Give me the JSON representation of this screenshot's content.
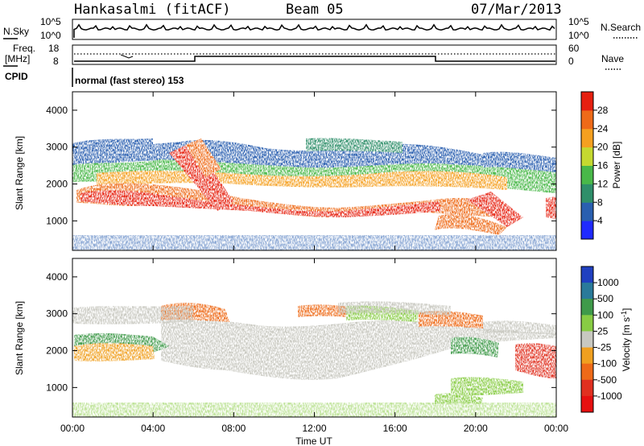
{
  "header": {
    "station": "Hankasalmi (fitACF)",
    "beam": "Beam 05",
    "date": "07/Mar/2013"
  },
  "status_panels": {
    "nsky_label": "N.Sky",
    "nsearch_label": "N.Search",
    "freq_label_line1": "Freq.",
    "freq_label_line2": "[MHz]",
    "nave_label": "Nave",
    "cpid_label": "CPID",
    "cpid_text": "normal (fast stereo) 153",
    "noise_left_ticks": [
      "10^5",
      "10^0"
    ],
    "noise_right_ticks": [
      "10^5",
      "10^0"
    ],
    "freq_left_ticks": [
      "18",
      "8"
    ],
    "nave_right_ticks": [
      "60",
      "0"
    ]
  },
  "chart_data": [
    {
      "type": "heatmap",
      "ylabel": "Slant Range [km]",
      "xlabel": "",
      "y_ticks": [
        "1000",
        "2000",
        "3000",
        "4000"
      ],
      "ylim": [
        200,
        4500
      ],
      "colorbar_label": "Power [dB]",
      "colorbar_ticks": [
        "4",
        "8",
        "12",
        "16",
        "20",
        "24",
        "28"
      ],
      "colorbar_colors": [
        "#1f2aff",
        "#2a5fb0",
        "#2f8f6a",
        "#49b849",
        "#c5d930",
        "#f5a020",
        "#ee6a18",
        "#e62010"
      ]
    },
    {
      "type": "heatmap",
      "ylabel": "Slant Range [km]",
      "xlabel": "Time UT",
      "y_ticks": [
        "1000",
        "2000",
        "3000",
        "4000"
      ],
      "ylim": [
        200,
        4500
      ],
      "x_ticks": [
        "00:00",
        "04:00",
        "08:00",
        "12:00",
        "16:00",
        "20:00",
        "00:00"
      ],
      "colorbar_label": "Velocity [m s^-1]",
      "colorbar_ticks": [
        "1000",
        "500",
        "100",
        "25",
        "-25",
        "-100",
        "-500",
        "-1000"
      ],
      "colorbar_colors": [
        "#2040c0",
        "#2a7a9a",
        "#3f9a4a",
        "#88cc44",
        "#c8c8c0",
        "#f0a020",
        "#ee6a18",
        "#e03020",
        "#e61010"
      ]
    }
  ]
}
